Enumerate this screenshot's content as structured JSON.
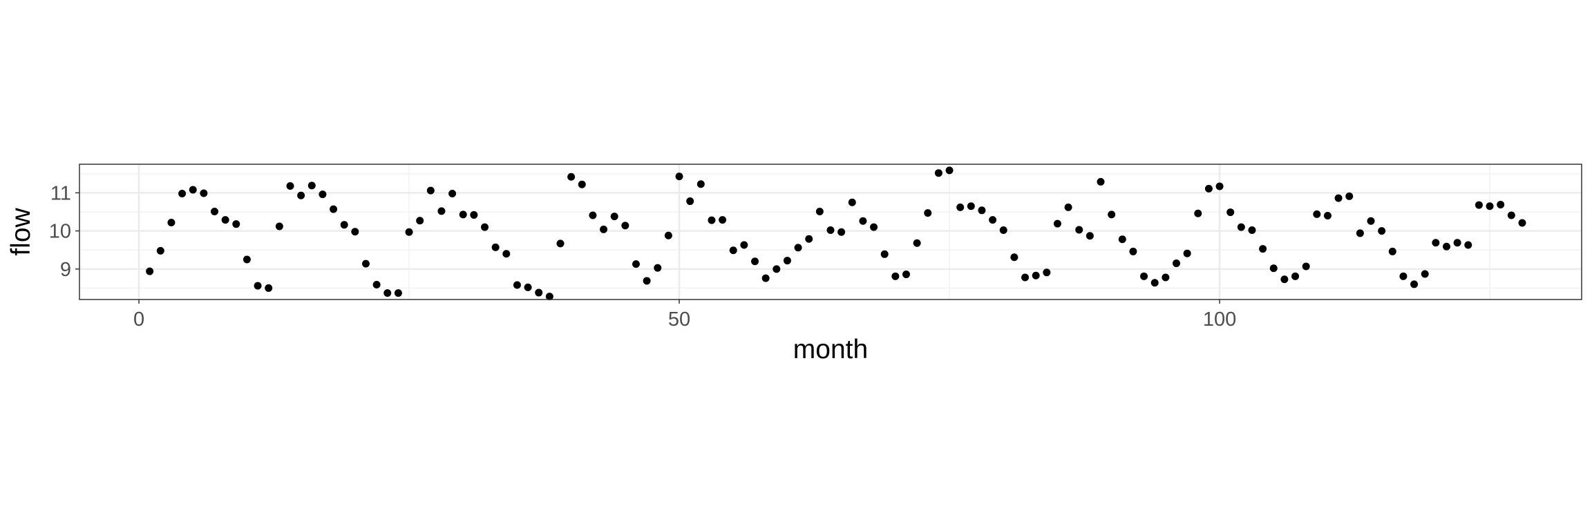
{
  "chart_data": {
    "type": "scatter",
    "title": "",
    "xlabel": "month",
    "ylabel": "flow",
    "xlim": [
      -5.5,
      133.5
    ],
    "ylim": [
      8.2,
      11.75
    ],
    "x_ticks": [
      0,
      50,
      100
    ],
    "x_tick_labels": [
      "0",
      "50",
      "100"
    ],
    "y_ticks": [
      9,
      10,
      11
    ],
    "y_tick_labels": [
      "9",
      "10",
      "11"
    ],
    "grid": true,
    "point_color": "#000000",
    "x": [
      1,
      2,
      3,
      4,
      5,
      6,
      7,
      8,
      9,
      10,
      11,
      12,
      13,
      14,
      15,
      16,
      17,
      18,
      19,
      20,
      21,
      22,
      23,
      24,
      25,
      26,
      27,
      28,
      29,
      30,
      31,
      32,
      33,
      34,
      35,
      36,
      37,
      38,
      39,
      40,
      41,
      42,
      43,
      44,
      45,
      46,
      47,
      48,
      49,
      50,
      51,
      52,
      53,
      54,
      55,
      56,
      57,
      58,
      59,
      60,
      61,
      62,
      63,
      64,
      65,
      66,
      67,
      68,
      69,
      70,
      71,
      72,
      73,
      74,
      75,
      76,
      77,
      78,
      79,
      80,
      81,
      82,
      83,
      84,
      85,
      86,
      87,
      88,
      89,
      90,
      91,
      92,
      93,
      94,
      95,
      96,
      97,
      98,
      99,
      100,
      101,
      102,
      103,
      104,
      105,
      106,
      107,
      108,
      109,
      110,
      111,
      112,
      113,
      114,
      115,
      116,
      117,
      118,
      119,
      120,
      121,
      122,
      123,
      124,
      125,
      126,
      127,
      128
    ],
    "y": [
      8.94,
      9.48,
      10.22,
      10.98,
      11.08,
      10.99,
      10.51,
      10.29,
      10.18,
      9.25,
      8.56,
      8.5,
      10.12,
      11.18,
      10.93,
      11.19,
      10.96,
      10.57,
      10.16,
      9.98,
      9.14,
      8.59,
      8.37,
      8.37,
      9.97,
      10.27,
      11.06,
      10.52,
      10.98,
      10.43,
      10.42,
      10.1,
      9.57,
      9.4,
      8.58,
      8.52,
      8.38,
      8.28,
      9.67,
      11.42,
      11.22,
      10.41,
      10.04,
      10.38,
      10.14,
      9.13,
      8.69,
      9.03,
      9.88,
      11.43,
      10.78,
      11.23,
      10.28,
      10.29,
      9.49,
      9.63,
      9.2,
      8.76,
      9.0,
      9.22,
      9.56,
      9.79,
      10.51,
      10.02,
      9.97,
      10.75,
      10.26,
      10.1,
      9.39,
      8.81,
      8.86,
      9.68,
      10.47,
      11.52,
      11.59,
      10.62,
      10.65,
      10.54,
      10.29,
      10.02,
      9.31,
      8.78,
      8.83,
      8.91,
      10.19,
      10.62,
      10.03,
      9.87,
      11.29,
      10.43,
      9.78,
      9.46,
      8.81,
      8.64,
      8.78,
      9.15,
      9.41,
      10.46,
      11.11,
      11.17,
      10.49,
      10.1,
      10.02,
      9.53,
      9.02,
      8.73,
      8.81,
      9.07,
      10.44,
      10.4,
      10.86,
      10.91,
      9.94,
      10.26,
      10.0,
      9.46,
      8.81,
      8.6,
      8.87,
      9.69,
      9.59,
      9.69,
      9.63,
      10.68,
      10.65,
      10.69,
      10.41,
      10.21
    ]
  }
}
